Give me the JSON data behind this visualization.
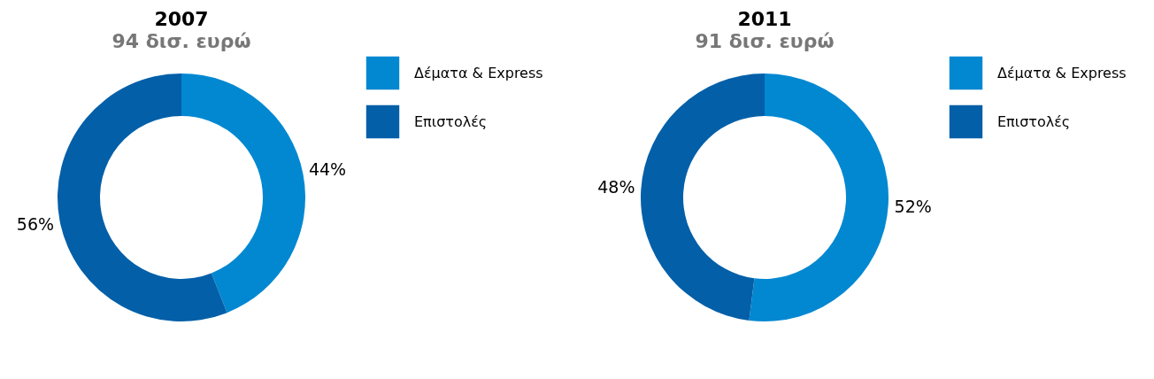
{
  "chart_data": [
    {
      "type": "donut",
      "title": "2007",
      "subtitle": "94 δισ. ευρώ",
      "categories": [
        "Δέματα & Express",
        "Επιστολές"
      ],
      "values": [
        44,
        56
      ],
      "value_labels": [
        "44%",
        "56%"
      ],
      "colors": [
        "#0288d1",
        "#035fa8"
      ],
      "legend": "right"
    },
    {
      "type": "donut",
      "title": "2011",
      "subtitle": "91 δισ. ευρώ",
      "categories": [
        "Δέματα & Express",
        "Επιστολές"
      ],
      "values": [
        52,
        48
      ],
      "value_labels": [
        "52%",
        "48%"
      ],
      "colors": [
        "#0288d1",
        "#035fa8"
      ],
      "legend": "right"
    }
  ]
}
